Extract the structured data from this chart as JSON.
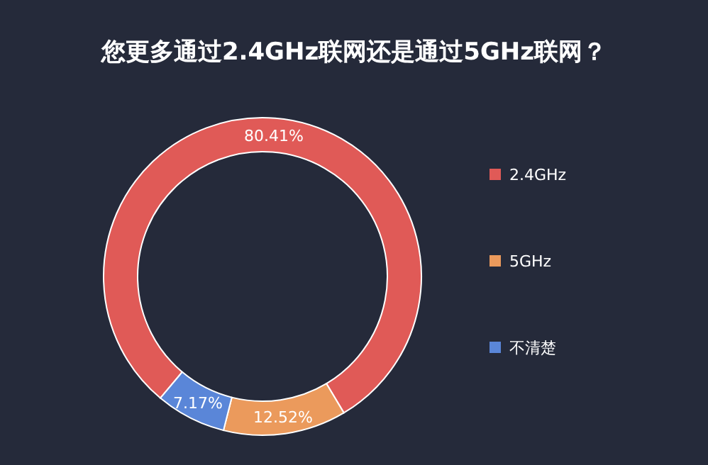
{
  "chart_data": {
    "type": "donut",
    "title": "您更多通过2.4GHz联网还是通过5GHz联网？",
    "categories": [
      "2.4GHz",
      "5GHz",
      "不清楚"
    ],
    "values": [
      80.41,
      12.52,
      7.17
    ],
    "colors": [
      "#e05a57",
      "#eb9a5c",
      "#5a86d8"
    ],
    "value_labels": [
      "80.41%",
      "12.52%",
      "7.17%"
    ],
    "legend": "right"
  }
}
